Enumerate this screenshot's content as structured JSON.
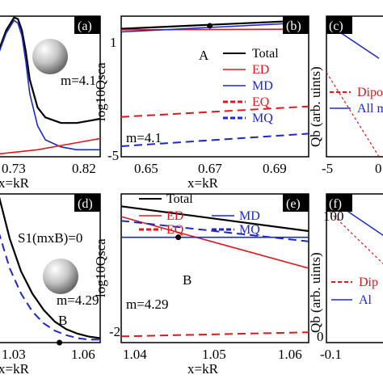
{
  "colors": {
    "total": "#000000",
    "ed": "#e0181c",
    "md": "#1c28c8",
    "eq": "#e0181c",
    "mq": "#1c28c8",
    "sphere": "#b8b8b8"
  },
  "panels": {
    "a": {
      "letter": "(a)",
      "m_label": "m=4.1",
      "xticks": [
        "0.73",
        "0.82"
      ],
      "xlabel": "x=kR"
    },
    "b": {
      "letter": "(b)",
      "ylabel": "log10Qsca",
      "yticks": [
        "1",
        "-5"
      ],
      "xticks": [
        "0.65",
        "0.67",
        "0.69"
      ],
      "xlabel": "x=kR",
      "point_label": "A",
      "m_label": "m=4.1",
      "legend": [
        "Total",
        "ED",
        "MD",
        "EQ",
        "MQ"
      ]
    },
    "c": {
      "letter": "(c)",
      "ylabel": "Qb (arb. uints)",
      "xticks": [
        "-5",
        "0"
      ],
      "legend": [
        "Dipo",
        "All m"
      ]
    },
    "d": {
      "letter": "(d)",
      "eq_label": "S1(mxB)=0",
      "m_label": "m=4.29",
      "point_label": "B",
      "xticks": [
        "1.03",
        "1.06"
      ],
      "xlabel": "x=kR"
    },
    "e": {
      "letter": "(e)",
      "ylabel": "log10Qsca",
      "yticks": [
        "-2"
      ],
      "xticks": [
        "1.04",
        "1.05",
        "1.06"
      ],
      "xlabel": "x=kR",
      "point_label": "B",
      "m_label": "m=4.29",
      "legend": [
        "Total",
        "ED",
        "MD",
        "EQ",
        "MQ"
      ]
    },
    "f": {
      "letter": "(f)",
      "ylabel": "Qb (arb. uints)",
      "yticks": [
        "100",
        "0"
      ],
      "xticks": [
        "-0.1"
      ],
      "legend": [
        "Dip",
        "Al"
      ]
    }
  },
  "chart_data": [
    {
      "type": "line",
      "panel": "a",
      "x_range": [
        0.7,
        0.83
      ],
      "y_range": [
        0,
        1
      ],
      "series": [
        {
          "name": "Total",
          "x": [
            0.7,
            0.71,
            0.72,
            0.725,
            0.73,
            0.735,
            0.74,
            0.75,
            0.76,
            0.78,
            0.8,
            0.82,
            0.83
          ],
          "y": [
            0.75,
            0.9,
            0.99,
            0.98,
            0.9,
            0.75,
            0.55,
            0.35,
            0.28,
            0.24,
            0.24,
            0.26,
            0.27
          ]
        },
        {
          "name": "MD",
          "x": [
            0.7,
            0.71,
            0.72,
            0.725,
            0.73,
            0.735,
            0.74,
            0.75,
            0.76,
            0.78,
            0.8,
            0.82,
            0.83
          ],
          "y": [
            0.73,
            0.88,
            0.97,
            0.95,
            0.86,
            0.68,
            0.45,
            0.22,
            0.12,
            0.07,
            0.05,
            0.05,
            0.05
          ]
        },
        {
          "name": "ED",
          "x": [
            0.7,
            0.75,
            0.8,
            0.83
          ],
          "y": [
            0.02,
            0.05,
            0.1,
            0.13
          ]
        }
      ]
    },
    {
      "type": "line",
      "panel": "b",
      "x_range": [
        0.64,
        0.695
      ],
      "y_range": [
        -5.5,
        1.2
      ],
      "series": [
        {
          "name": "Total",
          "x": [
            0.64,
            0.695
          ],
          "y": [
            0.6,
            1.0
          ]
        },
        {
          "name": "ED",
          "x": [
            0.64,
            0.695
          ],
          "y": [
            0.55,
            0.58
          ]
        },
        {
          "name": "MD",
          "x": [
            0.64,
            0.695
          ],
          "y": [
            0.45,
            0.9
          ]
        },
        {
          "name": "EQ",
          "x": [
            0.64,
            0.695
          ],
          "y": [
            -3.6,
            -3.1
          ]
        },
        {
          "name": "MQ",
          "x": [
            0.64,
            0.695
          ],
          "y": [
            -5.0,
            -4.4
          ]
        }
      ],
      "points": [
        {
          "label": "A",
          "x": 0.666,
          "y": 0.74
        }
      ]
    },
    {
      "type": "line",
      "panel": "c",
      "x_range": [
        -6,
        1
      ],
      "y_range": [
        0,
        1
      ],
      "series": [
        {
          "name": "Dipo",
          "x": [
            -6,
            0
          ],
          "y": [
            0.6,
            0.0
          ]
        },
        {
          "name": "All m",
          "x": [
            -6,
            0
          ],
          "y": [
            0.95,
            0.7
          ]
        }
      ]
    },
    {
      "type": "line",
      "panel": "d",
      "x_range": [
        1.02,
        1.065
      ],
      "y_range": [
        0,
        1
      ],
      "series": [
        {
          "name": "Total",
          "x": [
            1.02,
            1.025,
            1.03,
            1.035,
            1.04,
            1.045,
            1.05,
            1.055,
            1.06,
            1.065
          ],
          "y": [
            1.0,
            0.7,
            0.48,
            0.33,
            0.22,
            0.14,
            0.09,
            0.06,
            0.04,
            0.03
          ]
        },
        {
          "name": "MQ",
          "x": [
            1.02,
            1.025,
            1.03,
            1.035,
            1.04,
            1.045,
            1.05,
            1.055,
            1.06,
            1.065
          ],
          "y": [
            0.75,
            0.5,
            0.33,
            0.21,
            0.13,
            0.08,
            0.05,
            0.03,
            0.02,
            0.02
          ]
        }
      ],
      "points": [
        {
          "label": "B",
          "x": 1.047,
          "y": 0.0
        }
      ]
    },
    {
      "type": "line",
      "panel": "e",
      "x_range": [
        1.04,
        1.062
      ],
      "y_range": [
        -2.1,
        1.5
      ],
      "series": [
        {
          "name": "Total",
          "x": [
            1.04,
            1.062
          ],
          "y": [
            1.2,
            0.6
          ]
        },
        {
          "name": "ED",
          "x": [
            1.04,
            1.062
          ],
          "y": [
            0.95,
            -0.3
          ]
        },
        {
          "name": "MD",
          "x": [
            1.04,
            1.062
          ],
          "y": [
            0.45,
            0.45
          ]
        },
        {
          "name": "EQ",
          "x": [
            1.04,
            1.062
          ],
          "y": [
            -1.95,
            -1.85
          ]
        },
        {
          "name": "MQ",
          "x": [
            1.04,
            1.062
          ],
          "y": [
            0.85,
            0.35
          ]
        }
      ],
      "points": [
        {
          "label": "B",
          "x": 1.0467,
          "y": 0.45
        }
      ]
    },
    {
      "type": "line",
      "panel": "f",
      "x_range": [
        -0.12,
        0.0
      ],
      "y_range": [
        0,
        100
      ],
      "series": [
        {
          "name": "Dip",
          "x": [
            -0.12,
            0.0
          ],
          "y": [
            90,
            50
          ]
        },
        {
          "name": "Al",
          "x": [
            -0.12,
            0.0
          ],
          "y": [
            98,
            70
          ]
        }
      ]
    }
  ]
}
